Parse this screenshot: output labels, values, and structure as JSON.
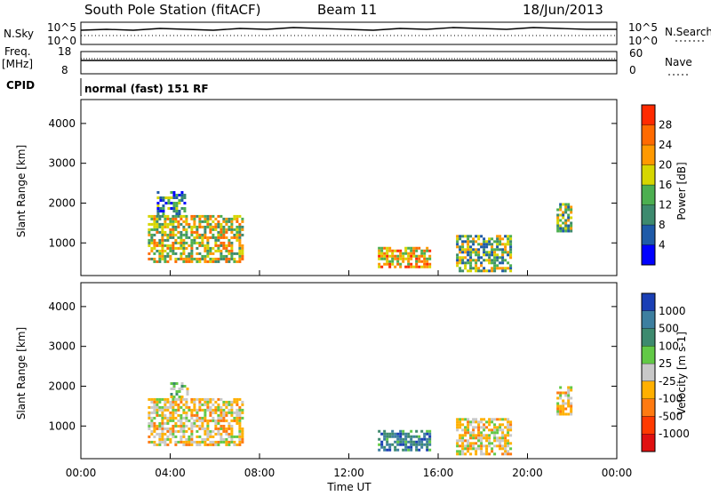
{
  "header": {
    "station": "South Pole Station (fitACF)",
    "beam": "Beam 11",
    "date": "18/Jun/2013"
  },
  "strip": {
    "nsky_label": "N.Sky",
    "nsky_ticks": [
      "10^5",
      "10^0"
    ],
    "nsearch_label": "N.Search",
    "nsearch_ticks": [
      "10^5",
      "10^0"
    ],
    "freq_label": "Freq.",
    "freq_unit": "[MHz]",
    "freq_ticks": [
      "18",
      "8"
    ],
    "nave_label": "Nave",
    "nave_ticks": [
      "60",
      "0"
    ],
    "cpid_label": "CPID",
    "cpid_text": "normal (fast) 151 RF"
  },
  "chart_data": [
    {
      "type": "heatmap",
      "panel": "power",
      "ylabel": "Slant Range [km]",
      "ylim": [
        180,
        4600
      ],
      "yticks": [
        "1000",
        "2000",
        "3000",
        "4000"
      ],
      "xlabels": [
        "00:00",
        "04:00",
        "08:00",
        "12:00",
        "16:00",
        "20:00",
        "00:00"
      ],
      "colorbar": {
        "label": "Power [dB]",
        "ticks": [
          "4",
          "8",
          "12",
          "16",
          "20",
          "24",
          "28"
        ],
        "colors": [
          "#0000ff",
          "#1e5aa8",
          "#3d8a6e",
          "#4caf50",
          "#d6d600",
          "#ff9900",
          "#ff6a00",
          "#ff2a00"
        ]
      },
      "regions": [
        {
          "t0": 3.0,
          "t1": 7.2,
          "r0": 500,
          "r1": 1700,
          "level": 5
        },
        {
          "t0": 3.4,
          "t1": 4.6,
          "r0": 1700,
          "r1": 2300,
          "level": 3
        },
        {
          "t0": 13.3,
          "t1": 15.6,
          "r0": 400,
          "r1": 900,
          "level": 6
        },
        {
          "t0": 16.8,
          "t1": 19.2,
          "r0": 300,
          "r1": 1200,
          "level": 4
        },
        {
          "t0": 21.3,
          "t1": 22.0,
          "r0": 1300,
          "r1": 2000,
          "level": 4
        }
      ]
    },
    {
      "type": "heatmap",
      "panel": "velocity",
      "ylabel": "Slant Range [km]",
      "ylim": [
        180,
        4600
      ],
      "yticks": [
        "1000",
        "2000",
        "3000",
        "4000"
      ],
      "xlabels": [
        "00:00",
        "04:00",
        "08:00",
        "12:00",
        "16:00",
        "20:00",
        "00:00"
      ],
      "xlabel": "Time UT",
      "colorbar": {
        "label": "Velocity [m s-1]",
        "ticks": [
          "1000",
          "500",
          "100",
          "25",
          "-25",
          "-100",
          "-500",
          "-1000"
        ],
        "colors": [
          "#1a3fb5",
          "#3d7fa0",
          "#3d8a6e",
          "#62c946",
          "#c8c8c8",
          "#ffb000",
          "#ff7a10",
          "#ff3a00",
          "#e01010"
        ]
      },
      "regions": [
        {
          "t0": 3.0,
          "t1": 7.2,
          "r0": 500,
          "r1": 1700,
          "level": -100
        },
        {
          "t0": 4.0,
          "t1": 4.8,
          "r0": 1700,
          "r1": 2100,
          "level": -25
        },
        {
          "t0": 13.3,
          "t1": 15.6,
          "r0": 400,
          "r1": 900,
          "level": 100
        },
        {
          "t0": 16.8,
          "t1": 19.2,
          "r0": 300,
          "r1": 1200,
          "level": -100
        },
        {
          "t0": 21.3,
          "t1": 22.0,
          "r0": 1300,
          "r1": 2000,
          "level": -100
        }
      ]
    }
  ]
}
